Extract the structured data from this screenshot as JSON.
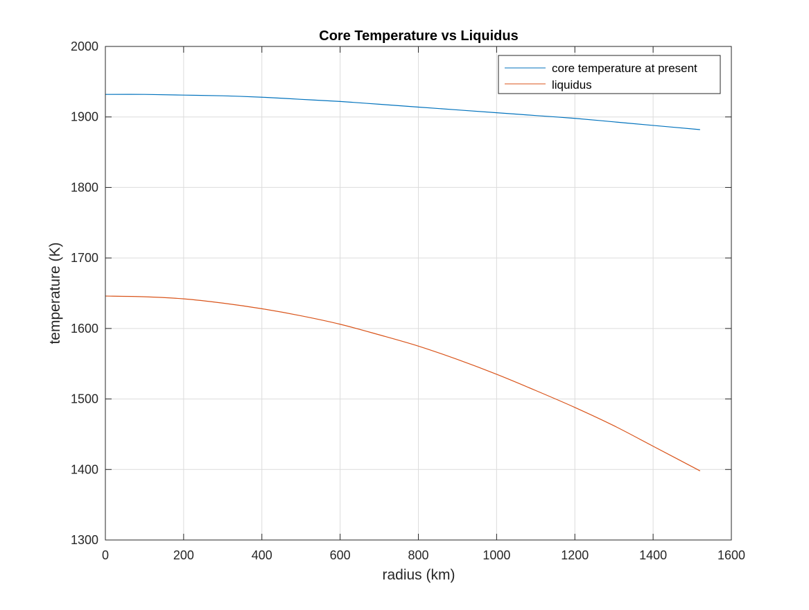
{
  "chart_data": {
    "type": "line",
    "title": "Core Temperature vs Liquidus",
    "xlabel": "radius (km)",
    "ylabel": "temperature (K)",
    "xlim": [
      0,
      1600
    ],
    "ylim": [
      1300,
      2000
    ],
    "xticks": [
      0,
      200,
      400,
      600,
      800,
      1000,
      1200,
      1400,
      1600
    ],
    "yticks": [
      1300,
      1400,
      1500,
      1600,
      1700,
      1800,
      1900,
      2000
    ],
    "xtick_labels": [
      "0",
      "200",
      "400",
      "600",
      "800",
      "1000",
      "1200",
      "1400",
      "1600"
    ],
    "ytick_labels": [
      "1300",
      "1400",
      "1500",
      "1600",
      "1700",
      "1800",
      "1900",
      "2000"
    ],
    "grid": true,
    "legend_position": "top-right",
    "series": [
      {
        "name": "core temperature at present",
        "color": "#0072BD",
        "x": [
          0,
          100,
          200,
          300,
          400,
          500,
          600,
          700,
          800,
          900,
          1000,
          1100,
          1200,
          1300,
          1400,
          1520
        ],
        "y": [
          1932,
          1932,
          1931,
          1930,
          1928,
          1925,
          1922,
          1918,
          1914,
          1910,
          1906,
          1902,
          1898,
          1893,
          1888,
          1882
        ]
      },
      {
        "name": "liquidus",
        "color": "#D95319",
        "x": [
          0,
          100,
          200,
          300,
          400,
          500,
          600,
          700,
          800,
          900,
          1000,
          1100,
          1200,
          1300,
          1400,
          1520
        ],
        "y": [
          1646,
          1645,
          1642,
          1636,
          1628,
          1618,
          1606,
          1591,
          1575,
          1556,
          1535,
          1512,
          1488,
          1462,
          1433,
          1398
        ]
      }
    ]
  }
}
